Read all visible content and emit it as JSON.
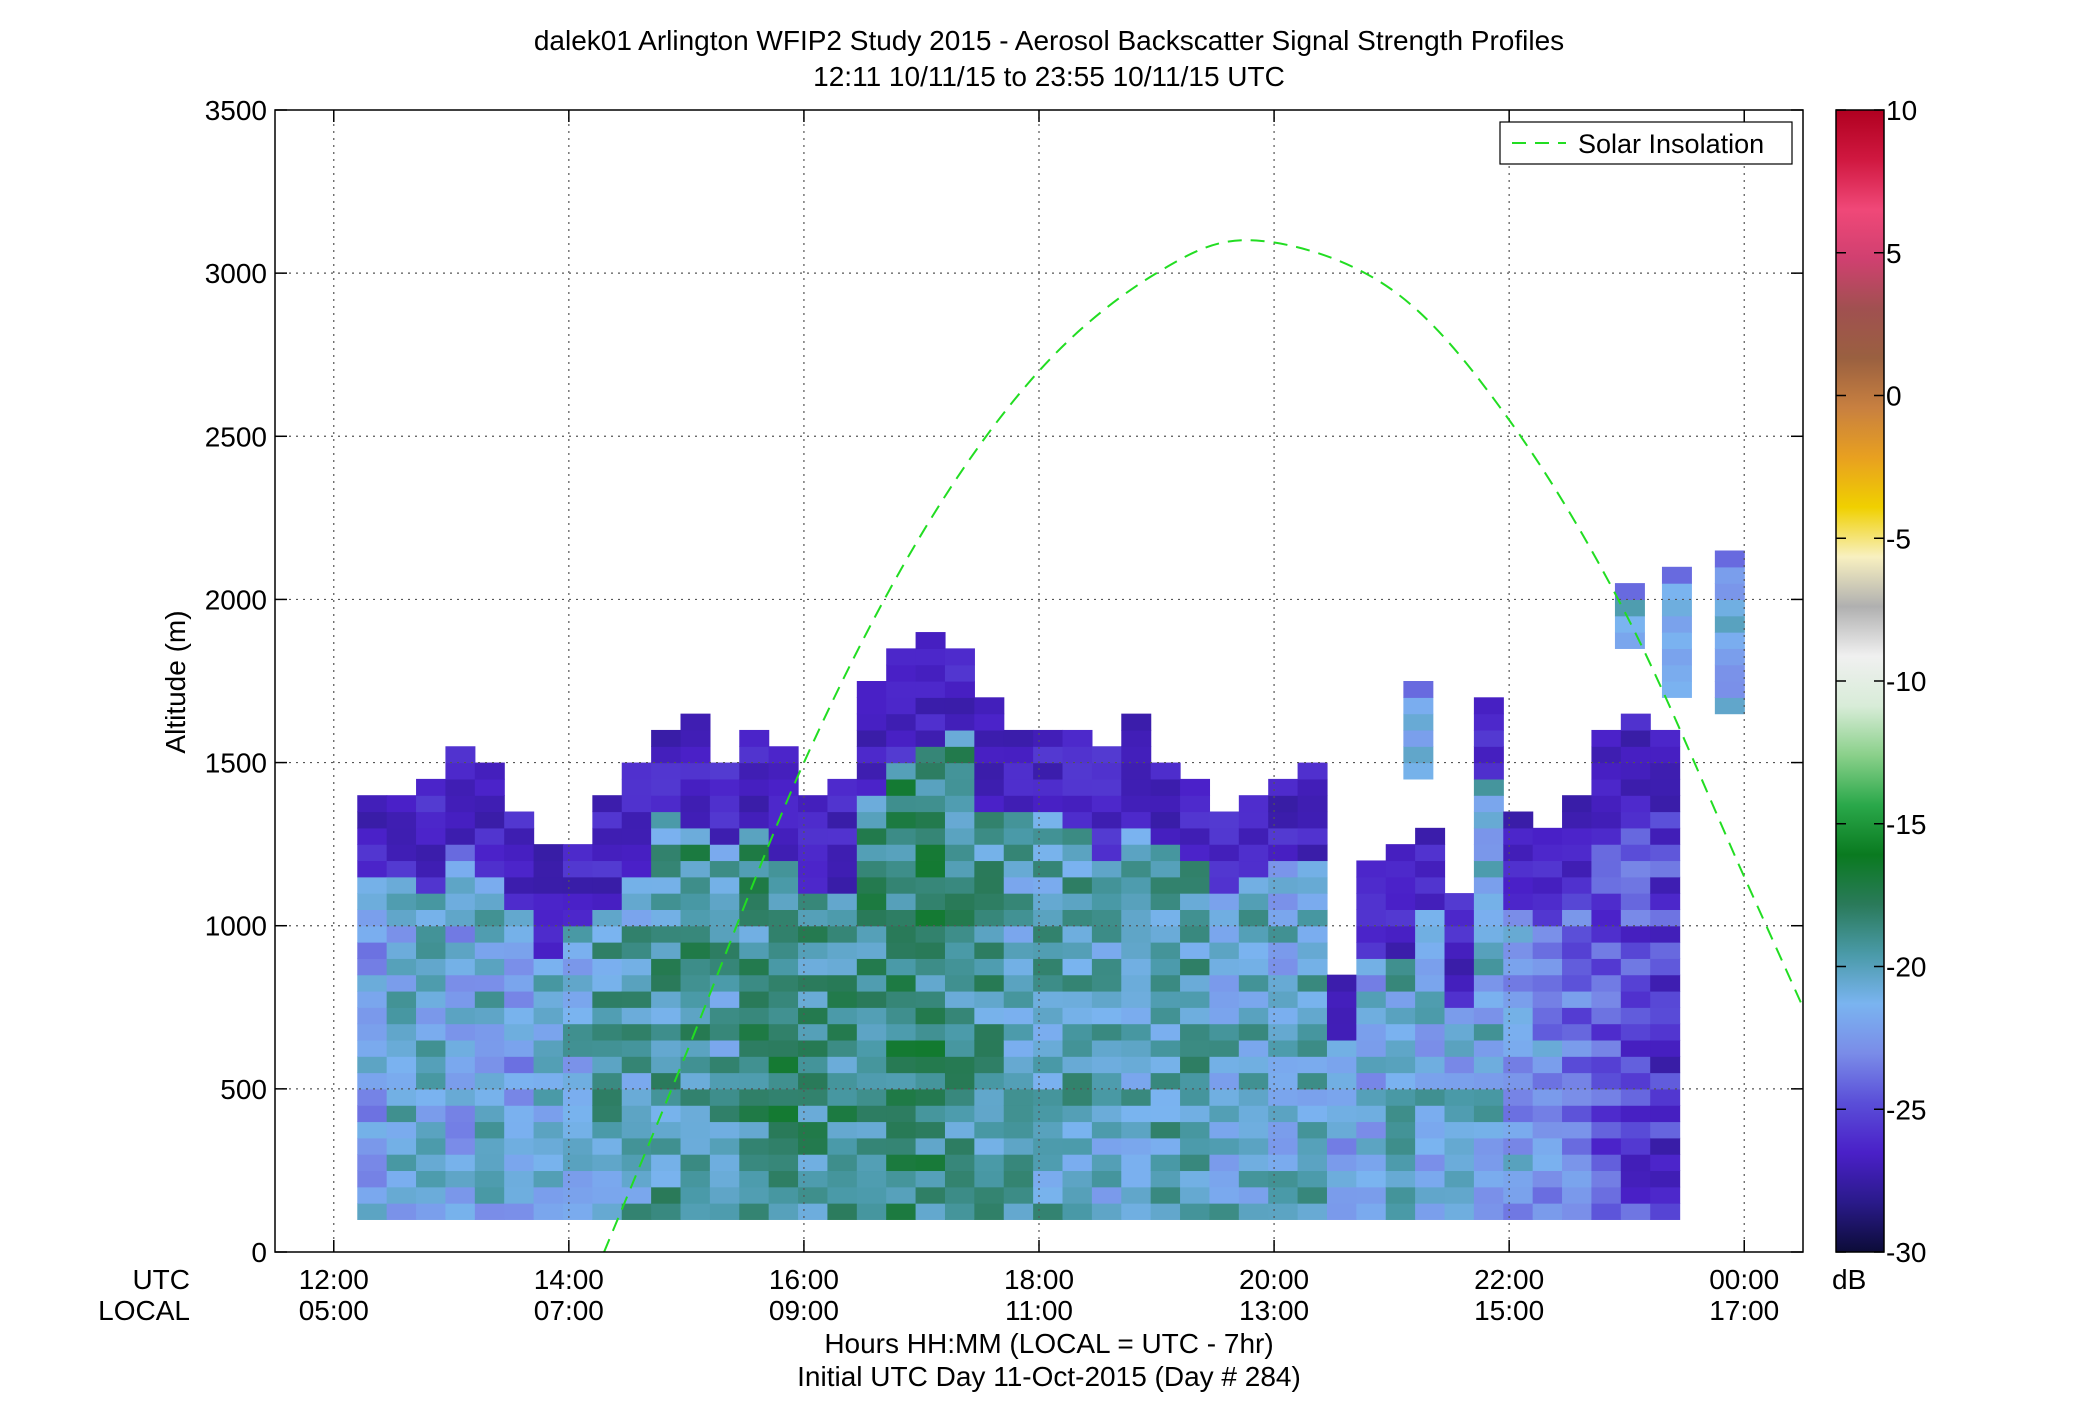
{
  "title": {
    "line1": "dalek01 Arlington WFIP2 Study 2015 - Aerosol Backscatter Signal Strength Profiles",
    "line2": "12:11 10/11/15 to 23:55 10/11/15  UTC"
  },
  "xaxis": {
    "row_label_utc": "UTC",
    "row_label_local": "LOCAL",
    "utc_ticks": [
      "12:00",
      "14:00",
      "16:00",
      "18:00",
      "20:00",
      "22:00",
      "00:00"
    ],
    "local_ticks": [
      "05:00",
      "07:00",
      "09:00",
      "11:00",
      "13:00",
      "15:00",
      "17:00"
    ],
    "label": "Hours HH:MM  (LOCAL = UTC - 7hr)",
    "sublabel": "Initial UTC Day 11-Oct-2015 (Day # 284)"
  },
  "yaxis": {
    "label": "Altitude (m)",
    "ticks": [
      "0",
      "500",
      "1000",
      "1500",
      "2000",
      "2500",
      "3000",
      "3500"
    ]
  },
  "colorbar": {
    "ticks": [
      "10",
      "5",
      "0",
      "-5",
      "-10",
      "-15",
      "-20",
      "-25",
      "-30"
    ],
    "unit": "dB",
    "stops": [
      "#0c0c38",
      "#2a1a8a",
      "#4a20c8",
      "#5a4ed8",
      "#7a8ce8",
      "#7ab4f0",
      "#4a9aa8",
      "#2a7a5a",
      "#0a7a20",
      "#2aa84a",
      "#8ad08a",
      "#d8ecd8",
      "#f0f0f0",
      "#b0b0b0",
      "#f8f0c0",
      "#f0d000",
      "#e8a020",
      "#c88040",
      "#9a6040",
      "#a05050",
      "#d04070",
      "#f04878",
      "#d01840",
      "#b00020"
    ]
  },
  "legend": {
    "label": "Solar Insolation"
  },
  "chart_data": {
    "type": "heatmap",
    "title": "dalek01 Arlington WFIP2 Study 2015 - Aerosol Backscatter Signal Strength Profiles",
    "subtitle": "12:11 10/11/15 to 23:55 10/11/15  UTC",
    "xlabel": "Hours HH:MM  (LOCAL = UTC - 7hr)",
    "ylabel": "Altitude (m)",
    "xlim_utc_hours": [
      11.5,
      24.5
    ],
    "ylim": [
      0,
      3500
    ],
    "clim_db": [
      -30,
      10
    ],
    "grid": true,
    "legend_position": "top-right",
    "time_start_utc_hours": 12.2,
    "time_step_hours": 0.25,
    "alt_start_m": 100,
    "alt_step_m": 50,
    "profile_tops_m": [
      1400,
      1400,
      1450,
      1550,
      1500,
      1350,
      1250,
      1250,
      1400,
      1500,
      1600,
      1650,
      1500,
      1600,
      1550,
      1400,
      1450,
      1750,
      1850,
      1900,
      1850,
      1700,
      1600,
      1600,
      1600,
      1550,
      1650,
      1500,
      1450,
      1350,
      1400,
      1450,
      1500,
      850,
      1200,
      1250,
      1300,
      1100,
      1700,
      1350,
      1300,
      1400,
      1600,
      1650,
      1600
    ],
    "profile_mean_db": [
      -22,
      -21,
      -21,
      -22,
      -21,
      -22,
      -21,
      -21,
      -20,
      -20,
      -19.5,
      -19,
      -20,
      -19,
      -18.5,
      -19,
      -19,
      -19,
      -18.5,
      -18.5,
      -19,
      -19.5,
      -20,
      -20,
      -20,
      -20.5,
      -20,
      -20,
      -20,
      -20.5,
      -20.5,
      -21,
      -20.5,
      -22,
      -21.5,
      -20.5,
      -21,
      -21.5,
      -21,
      -22,
      -22.5,
      -23.5,
      -24.5,
      -25,
      -25.5
    ],
    "upper_layer_db": -26.5,
    "elevated_layers": [
      {
        "time_utc_hours": 21.1,
        "bottom_m": 1450,
        "top_m": 1750,
        "mean_db": -21
      },
      {
        "time_utc_hours": 22.9,
        "bottom_m": 1850,
        "top_m": 2050,
        "mean_db": -20.5
      },
      {
        "time_utc_hours": 23.3,
        "bottom_m": 1700,
        "top_m": 2100,
        "mean_db": -22
      },
      {
        "time_utc_hours": 23.75,
        "bottom_m": 1650,
        "top_m": 2150,
        "mean_db": -21.5
      }
    ],
    "solar_insolation_curve": {
      "x_utc_hours": [
        14.3,
        15.0,
        16.0,
        17.0,
        18.0,
        19.0,
        19.85,
        21.0,
        22.0,
        23.0,
        24.0,
        24.5
      ],
      "y_m": [
        0,
        610,
        1500,
        2200,
        2700,
        3000,
        3100,
        2950,
        2550,
        1950,
        1150,
        750
      ]
    }
  }
}
